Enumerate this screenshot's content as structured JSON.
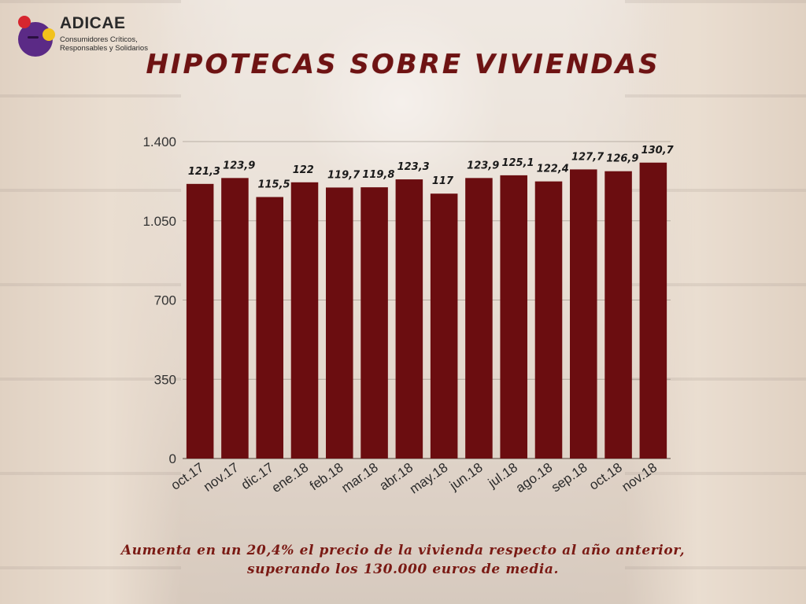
{
  "logo": {
    "name": "ADICAE",
    "tagline_line1": "Consumidores Críticos,",
    "tagline_line2": "Responsables y Solidarios",
    "colors": {
      "purple": "#5b2a86",
      "red": "#d6262f",
      "yellow": "#f2c21b"
    }
  },
  "chart_data": {
    "type": "bar",
    "title": "HIPOTECAS SOBRE VIVIENDAS",
    "categories": [
      "oct.17",
      "nov.17",
      "dic.17",
      "ene.18",
      "feb.18",
      "mar.18",
      "abr.18",
      "may.18",
      "jun.18",
      "jul.18",
      "ago.18",
      "sep.18",
      "oct.18",
      "nov.18"
    ],
    "values": [
      1213,
      1239,
      1155,
      1220,
      1197,
      1198,
      1233,
      1170,
      1239,
      1251,
      1224,
      1277,
      1269,
      1307
    ],
    "data_labels": [
      "121,3",
      "123,9",
      "115,5",
      "122",
      "119,7",
      "119,8",
      "123,3",
      "117",
      "123,9",
      "125,1",
      "122,4",
      "127,7",
      "126,9",
      "130,7"
    ],
    "y_ticks": [
      0,
      350,
      700,
      1050,
      1400
    ],
    "y_tick_labels": [
      "0",
      "350",
      "700",
      "1.050",
      "1.400"
    ],
    "ylim": [
      0,
      1400
    ],
    "xlabel": "",
    "ylabel": "",
    "grid": true,
    "legend": "none",
    "bar_color": "#6b0d10"
  },
  "caption": {
    "line1": "Aumenta en un 20,4% el precio de la vivienda respecto al año anterior,",
    "line2": "superando los 130.000 euros de media."
  }
}
